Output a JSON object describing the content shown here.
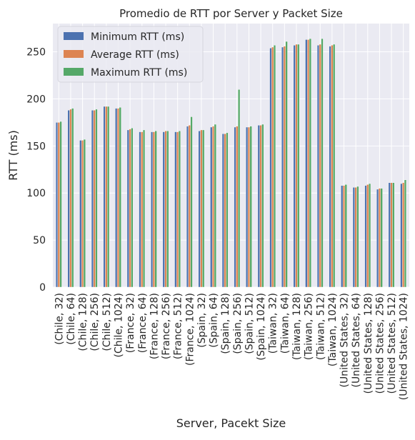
{
  "chart_data": {
    "type": "bar",
    "title": "Promedio de RTT por Server y Packet Size",
    "xlabel": "Server, Pacekt Size",
    "ylabel": "RTT (ms)",
    "ylim": [
      0,
      280
    ],
    "yticks": [
      0,
      50,
      100,
      150,
      200,
      250
    ],
    "grid": true,
    "legend_position": "top-left",
    "categories": [
      "(Chile, 32)",
      "(Chile, 64)",
      "(Chile, 128)",
      "(Chile, 256)",
      "(Chile, 512)",
      "(Chile, 1024)",
      "(France, 32)",
      "(France, 64)",
      "(France, 128)",
      "(France, 256)",
      "(France, 512)",
      "(France, 1024)",
      "(Spain, 32)",
      "(Spain, 64)",
      "(Spain, 128)",
      "(Spain, 256)",
      "(Spain, 512)",
      "(Spain, 1024)",
      "(Taiwan, 32)",
      "(Taiwan, 64)",
      "(Taiwan, 128)",
      "(Taiwan, 256)",
      "(Taiwan, 512)",
      "(Taiwan, 1024)",
      "(United States, 32)",
      "(United States, 64)",
      "(United States, 128)",
      "(United States, 256)",
      "(United States, 512)",
      "(United States, 1024)"
    ],
    "series": [
      {
        "name": "Minimum RTT (ms)",
        "color": "#4c72b0",
        "values": [
          175,
          188,
          156,
          188,
          192,
          190,
          167,
          165,
          165,
          165,
          165,
          171,
          166,
          170,
          163,
          170,
          170,
          172,
          254,
          255,
          257,
          263,
          257,
          256,
          108,
          106,
          108,
          104,
          111,
          110
        ]
      },
      {
        "name": "Average RTT (ms)",
        "color": "#dd8452",
        "values": [
          175,
          189,
          156,
          188,
          192,
          190,
          168,
          165,
          165,
          166,
          165,
          172,
          167,
          171,
          163,
          171,
          170,
          172,
          255,
          256,
          258,
          263,
          258,
          257,
          108,
          106,
          109,
          105,
          111,
          111
        ]
      },
      {
        "name": "Maximum RTT (ms)",
        "color": "#55a868",
        "values": [
          176,
          190,
          157,
          189,
          192,
          191,
          169,
          167,
          166,
          166,
          166,
          181,
          167,
          173,
          164,
          210,
          171,
          173,
          257,
          261,
          258,
          264,
          264,
          258,
          109,
          107,
          110,
          105,
          111,
          114
        ]
      }
    ]
  }
}
